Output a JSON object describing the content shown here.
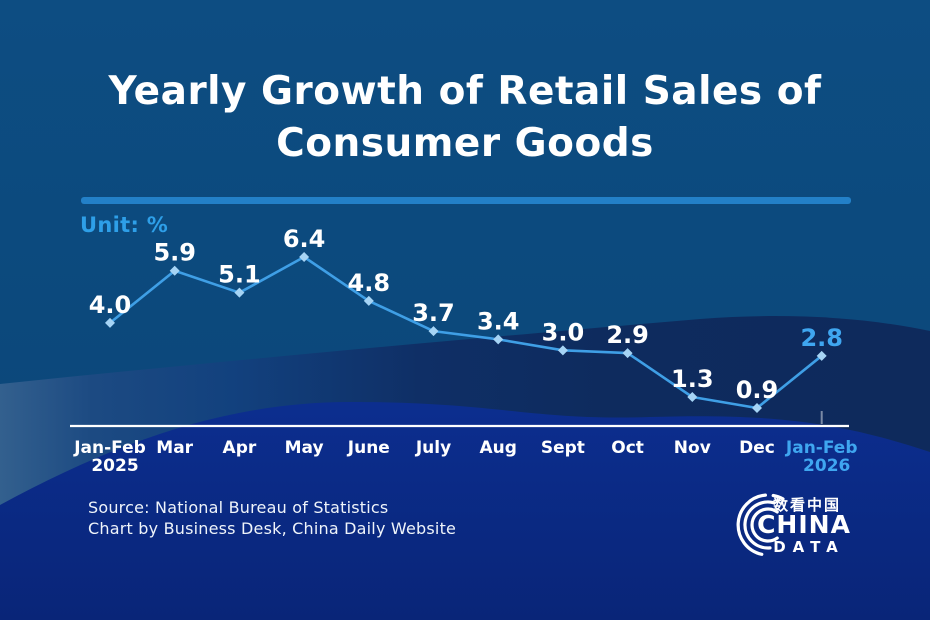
{
  "title": {
    "line1": "Yearly Growth of Retail Sales of",
    "line2": "Consumer Goods"
  },
  "unit_label": "Unit: %",
  "source": {
    "line1": "Source: National Bureau of Statistics",
    "line2": "Chart by Business Desk, China Daily Website"
  },
  "logo": {
    "chinese": "数看中国",
    "name_top": "CHINA",
    "name_bottom": "DATA"
  },
  "colors": {
    "background_steel": "#0C4A7D",
    "wave_navy": "#0E2B5E",
    "wave_royal": "#0A2B88",
    "divider": "#2380C8",
    "unit_text": "#2E9FE8",
    "trend_line": "#3F9FE6",
    "marker": "#A6D4F5",
    "highlight": "#3FA6F0",
    "label_text": "#FFFFFF",
    "axis_line": "#FFFFFF"
  },
  "chart_data": {
    "type": "line",
    "title": "Yearly Growth of Retail Sales of Consumer Goods",
    "unit": "%",
    "categories": [
      "Jan-Feb",
      "Mar",
      "Apr",
      "May",
      "June",
      "July",
      "Aug",
      "Sept",
      "Oct",
      "Nov",
      "Dec",
      "Jan-Feb"
    ],
    "category_sublabels": [
      {
        "index": 0,
        "label": "2025"
      },
      {
        "index": 11,
        "label": "2026"
      }
    ],
    "values": [
      4.0,
      5.9,
      5.1,
      6.4,
      4.8,
      3.7,
      3.4,
      3.0,
      2.9,
      1.3,
      0.9,
      2.8
    ],
    "highlight_index": 11,
    "ylim": [
      0,
      7
    ],
    "grid": false,
    "legend": null
  }
}
